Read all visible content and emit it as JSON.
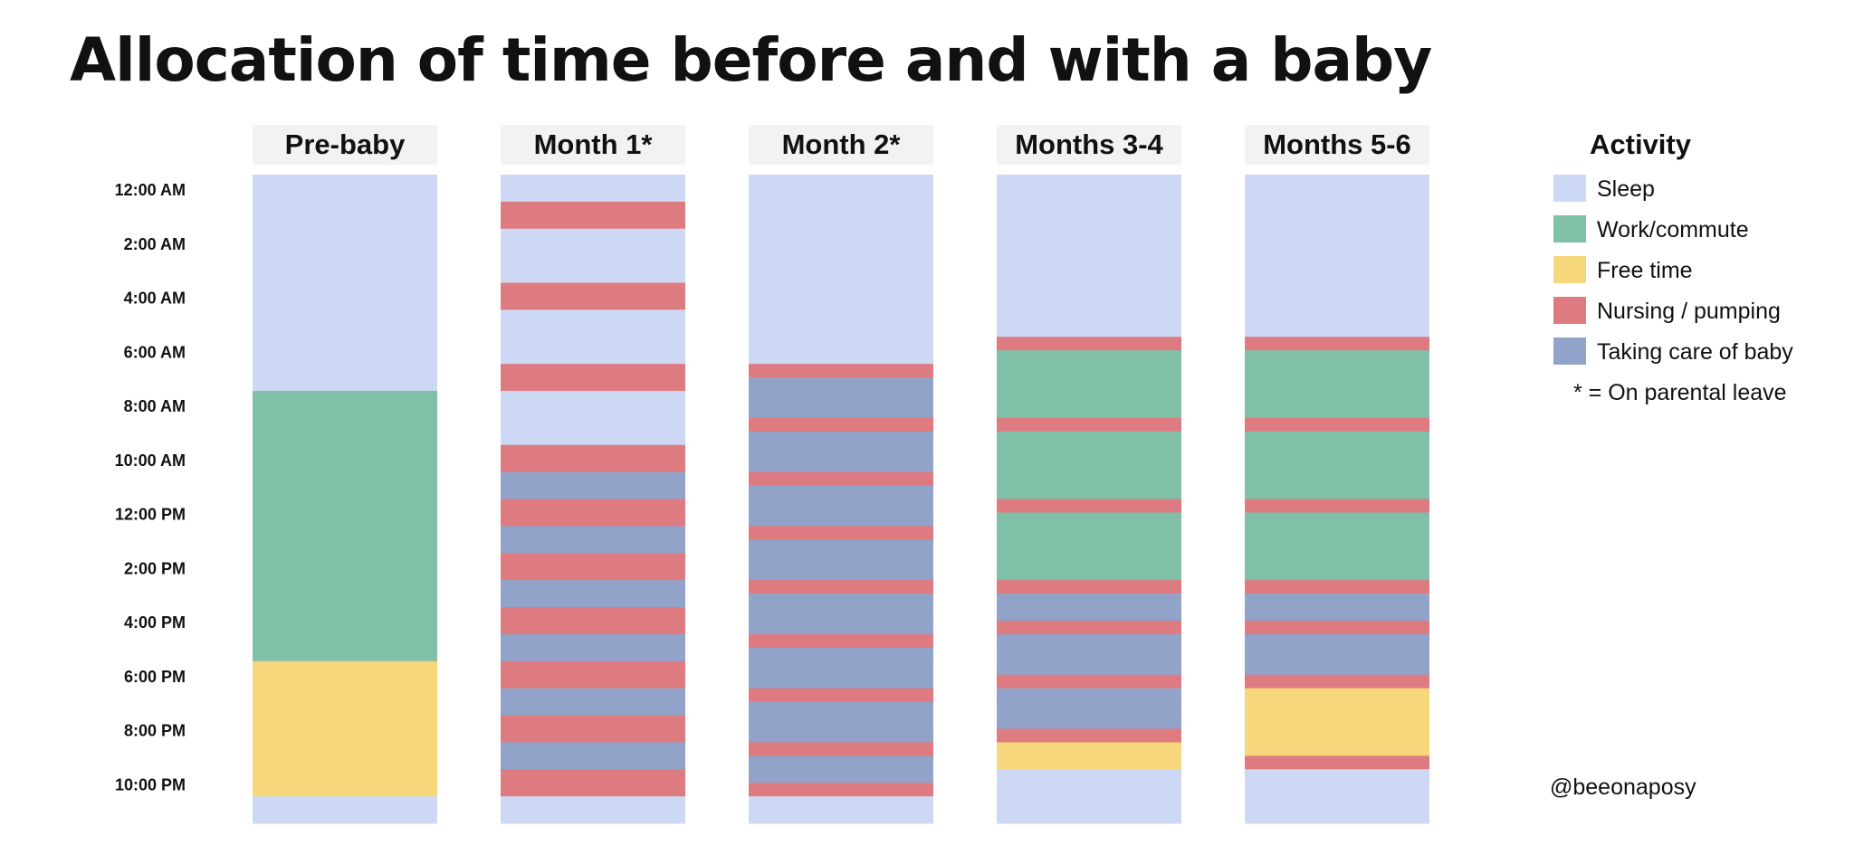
{
  "title": "Allocation of time before and with a baby",
  "credit": "@beeonaposy",
  "colors": {
    "sleep": "#cdd9f4",
    "work": "#80c0a6",
    "free": "#f7d77c",
    "nursing": "#de7b81",
    "baby": "#92a3c9",
    "header_bg": "#f2f2f2"
  },
  "chart_data": {
    "type": "stacked-timeline",
    "y_ticks": [
      "12:00 AM",
      "2:00 AM",
      "4:00 AM",
      "6:00 AM",
      "8:00 AM",
      "10:00 AM",
      "12:00 PM",
      "2:00 PM",
      "4:00 PM",
      "6:00 PM",
      "8:00 PM",
      "10:00 PM"
    ],
    "y_range_hours": [
      0,
      24
    ],
    "legend": {
      "title": "Activity",
      "items": [
        {
          "key": "sleep",
          "label": "Sleep"
        },
        {
          "key": "work",
          "label": "Work/commute"
        },
        {
          "key": "free",
          "label": "Free time"
        },
        {
          "key": "nursing",
          "label": "Nursing / pumping"
        },
        {
          "key": "baby",
          "label": "Taking care of baby"
        }
      ],
      "note": "* = On parental leave"
    },
    "columns": [
      {
        "label": "Pre-baby",
        "segments": [
          [
            0,
            8,
            "sleep"
          ],
          [
            8,
            18,
            "work"
          ],
          [
            18,
            23,
            "free"
          ],
          [
            23,
            24,
            "sleep"
          ]
        ]
      },
      {
        "label": "Month 1*",
        "segments": [
          [
            0,
            1,
            "sleep"
          ],
          [
            1,
            2,
            "nursing"
          ],
          [
            2,
            4,
            "sleep"
          ],
          [
            4,
            5,
            "nursing"
          ],
          [
            5,
            7,
            "sleep"
          ],
          [
            7,
            8,
            "nursing"
          ],
          [
            8,
            10,
            "sleep"
          ],
          [
            10,
            11,
            "nursing"
          ],
          [
            11,
            12,
            "baby"
          ],
          [
            12,
            13,
            "nursing"
          ],
          [
            13,
            14,
            "baby"
          ],
          [
            14,
            15,
            "nursing"
          ],
          [
            15,
            16,
            "baby"
          ],
          [
            16,
            17,
            "nursing"
          ],
          [
            17,
            18,
            "baby"
          ],
          [
            18,
            19,
            "nursing"
          ],
          [
            19,
            20,
            "baby"
          ],
          [
            20,
            21,
            "nursing"
          ],
          [
            21,
            22,
            "baby"
          ],
          [
            22,
            23,
            "nursing"
          ],
          [
            23,
            24,
            "sleep"
          ]
        ]
      },
      {
        "label": "Month 2*",
        "segments": [
          [
            0,
            7,
            "sleep"
          ],
          [
            7,
            7.5,
            "nursing"
          ],
          [
            7.5,
            9,
            "baby"
          ],
          [
            9,
            9.5,
            "nursing"
          ],
          [
            9.5,
            11,
            "baby"
          ],
          [
            11,
            11.5,
            "nursing"
          ],
          [
            11.5,
            13,
            "baby"
          ],
          [
            13,
            13.5,
            "nursing"
          ],
          [
            13.5,
            15,
            "baby"
          ],
          [
            15,
            15.5,
            "nursing"
          ],
          [
            15.5,
            17,
            "baby"
          ],
          [
            17,
            17.5,
            "nursing"
          ],
          [
            17.5,
            19,
            "baby"
          ],
          [
            19,
            19.5,
            "nursing"
          ],
          [
            19.5,
            21,
            "baby"
          ],
          [
            21,
            21.5,
            "nursing"
          ],
          [
            21.5,
            22.5,
            "baby"
          ],
          [
            22.5,
            23,
            "nursing"
          ],
          [
            23,
            24,
            "sleep"
          ]
        ]
      },
      {
        "label": "Months 3-4",
        "segments": [
          [
            0,
            6,
            "sleep"
          ],
          [
            6,
            6.5,
            "nursing"
          ],
          [
            6.5,
            9,
            "work"
          ],
          [
            9,
            9.5,
            "nursing"
          ],
          [
            9.5,
            12,
            "work"
          ],
          [
            12,
            12.5,
            "nursing"
          ],
          [
            12.5,
            15,
            "work"
          ],
          [
            15,
            15.5,
            "nursing"
          ],
          [
            15.5,
            16.5,
            "baby"
          ],
          [
            16.5,
            17,
            "nursing"
          ],
          [
            17,
            18.5,
            "baby"
          ],
          [
            18.5,
            19,
            "nursing"
          ],
          [
            19,
            20.5,
            "baby"
          ],
          [
            20.5,
            21,
            "nursing"
          ],
          [
            21,
            22,
            "free"
          ],
          [
            22,
            24,
            "sleep"
          ]
        ]
      },
      {
        "label": "Months 5-6",
        "segments": [
          [
            0,
            6,
            "sleep"
          ],
          [
            6,
            6.5,
            "nursing"
          ],
          [
            6.5,
            9,
            "work"
          ],
          [
            9,
            9.5,
            "nursing"
          ],
          [
            9.5,
            12,
            "work"
          ],
          [
            12,
            12.5,
            "nursing"
          ],
          [
            12.5,
            15,
            "work"
          ],
          [
            15,
            15.5,
            "nursing"
          ],
          [
            15.5,
            16.5,
            "baby"
          ],
          [
            16.5,
            17,
            "nursing"
          ],
          [
            17,
            18.5,
            "baby"
          ],
          [
            18.5,
            19,
            "nursing"
          ],
          [
            19,
            21.5,
            "free"
          ],
          [
            21.5,
            22,
            "nursing"
          ],
          [
            22,
            24,
            "sleep"
          ]
        ]
      }
    ]
  }
}
